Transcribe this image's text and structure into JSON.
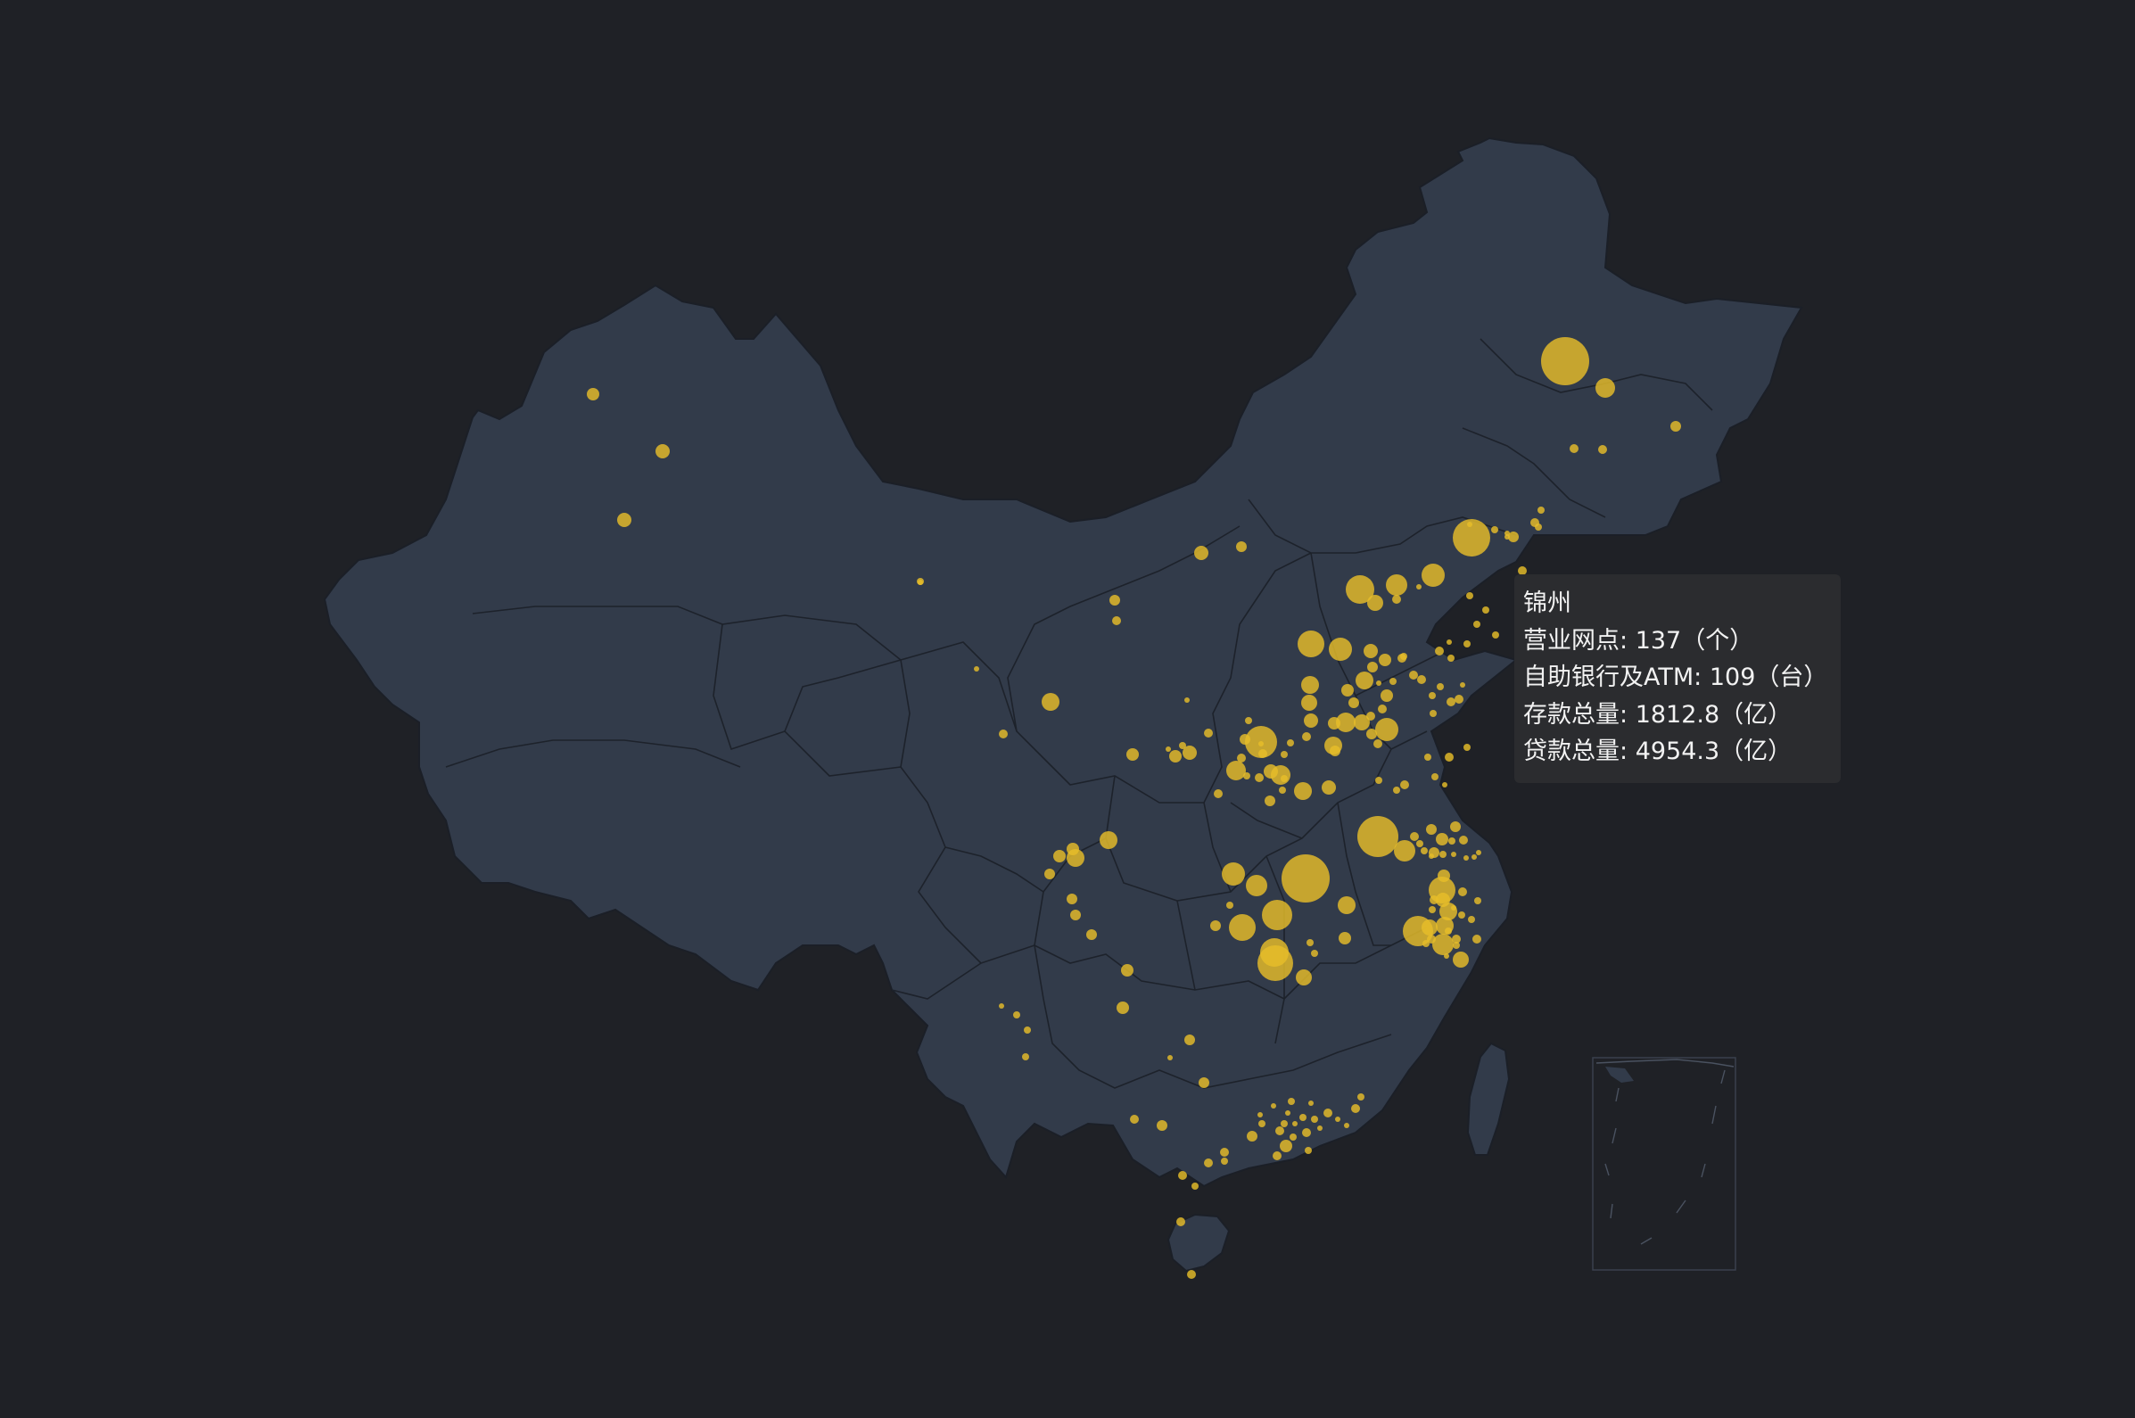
{
  "map": {
    "background_color": "#1f2126",
    "land_color": "#323b4a",
    "bubble_color": "#e6bd2a"
  },
  "tooltip": {
    "city": "锦州",
    "rows": [
      {
        "label": "营业网点",
        "sep": ": ",
        "value": "137（个）"
      },
      {
        "label": "自助银行及ATM",
        "sep": ": ",
        "value": "109（台）"
      },
      {
        "label": "存款总量",
        "sep": ": ",
        "value": "1812.8（亿）"
      },
      {
        "label": "贷款总量",
        "sep": ": ",
        "value": "4954.3（亿）"
      }
    ]
  }
}
